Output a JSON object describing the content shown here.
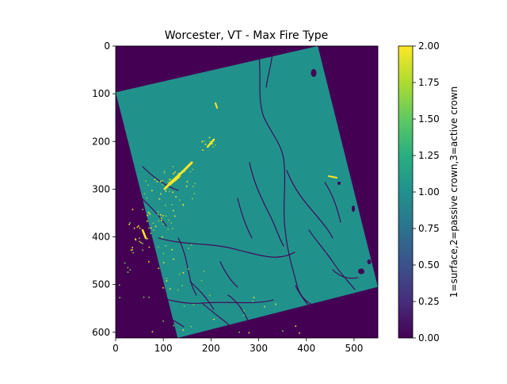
{
  "chart_data": {
    "type": "heatmap",
    "title": "Worcester, VT - Max Fire Type",
    "xlabel": "",
    "ylabel": "",
    "x_range": [
      0,
      550
    ],
    "y_range": [
      612,
      0
    ],
    "x_ticks": [
      0,
      100,
      200,
      300,
      400,
      500
    ],
    "y_ticks": [
      0,
      100,
      200,
      300,
      400,
      500,
      600
    ],
    "colorbar": {
      "label": "1=surface,2=passive crown,3=active crown",
      "range": [
        0.0,
        2.0
      ],
      "ticks": [
        "0.00",
        "0.25",
        "0.50",
        "0.75",
        "1.00",
        "1.25",
        "1.50",
        "1.75",
        "2.00"
      ],
      "colormap": "viridis"
    },
    "colors": {
      "background_value_0": "#440154",
      "surface_value_1": "#21918c",
      "passive_value_2": "#fde725",
      "mid_value_1_5": "#7ad151"
    },
    "footprint_corners": [
      [
        0,
        97
      ],
      [
        424,
        0
      ],
      [
        550,
        505
      ],
      [
        130,
        612
      ]
    ],
    "grid": false
  }
}
